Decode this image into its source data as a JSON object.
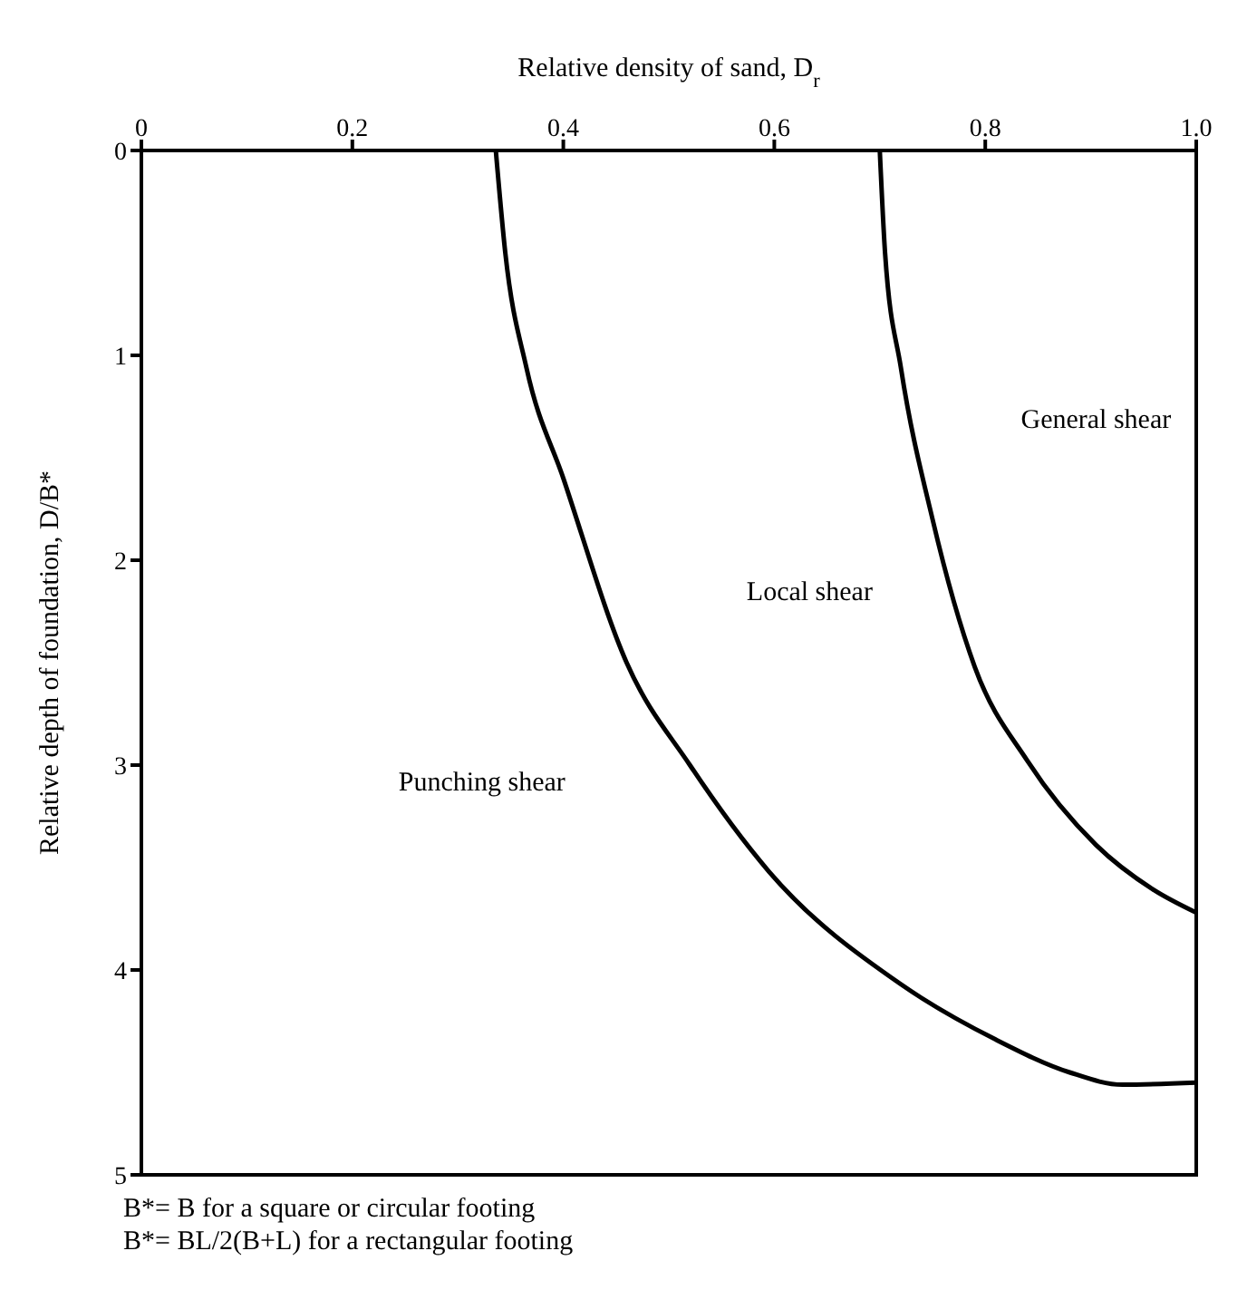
{
  "chart_data": {
    "type": "line",
    "xlabel": "Relative density of sand, D$_{r}$",
    "ylabel": "Relative depth of foundation, D/B*",
    "xlim": [
      0,
      1
    ],
    "xticks": [
      0,
      0.2,
      0.4,
      0.6,
      0.8,
      {
        "value": 1,
        "label": "1.0"
      }
    ],
    "ylim": [
      5,
      0
    ],
    "yticks": [
      0,
      1,
      2,
      3,
      4,
      5
    ],
    "series": [
      {
        "color": "#000000",
        "x": [
          0.336,
          0.345,
          0.365,
          0.4,
          0.46,
          0.52,
          0.595,
          0.72,
          0.81,
          0.88,
          0.93,
          1.0
        ],
        "values": [
          0,
          0.5,
          1.06,
          1.6,
          2.5,
          3,
          3.52,
          4.07,
          4.34,
          4.5,
          4.56,
          4.55
        ]
      },
      {
        "color": "#000000",
        "x": [
          0.7,
          0.705,
          0.72,
          0.75,
          0.79,
          0.84,
          0.905,
          0.96,
          1.0
        ],
        "values": [
          0,
          0.5,
          1.06,
          1.8,
          2.52,
          2.98,
          3.39,
          3.61,
          3.72
        ]
      }
    ],
    "annotations": [
      "General shear",
      "Local shear",
      "Punching shear",
      "B*= B for a square or circular footing",
      "B*= BL/2(B+L) for a rectangular footing"
    ],
    "marker": "none",
    "line_style": "solid"
  }
}
